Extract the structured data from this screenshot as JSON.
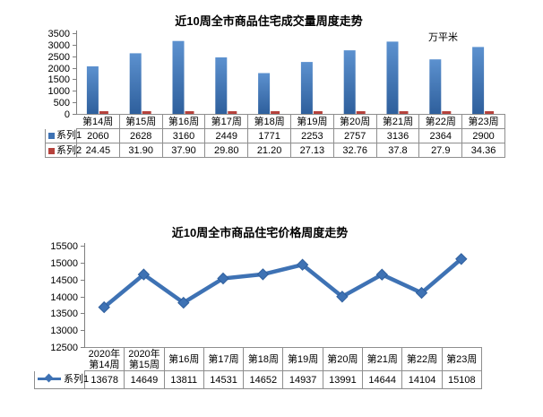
{
  "page": {
    "background": "#ffffff",
    "text_color": "#000000",
    "table_border_color": "#8e8e8e",
    "axis_color": "#7f7f7f"
  },
  "chart_data": [
    {
      "type": "bar",
      "title": "近10周全市商品住宅成交量周度走势",
      "unit_label": "万平米",
      "categories": [
        "第14周",
        "第15周",
        "第16周",
        "第17周",
        "第18周",
        "第19周",
        "第20周",
        "第21周",
        "第22周",
        "第23周"
      ],
      "series": [
        {
          "name": "系列1",
          "values": [
            "2060",
            "2628",
            "3160",
            "2449",
            "1771",
            "2253",
            "2757",
            "3136",
            "2364",
            "2900"
          ],
          "color": "#3e72b4",
          "color_light": "#5c91cf",
          "color_dark": "#2e5f9c"
        },
        {
          "name": "系列2",
          "values": [
            "24.45",
            "31.90",
            "37.90",
            "29.80",
            "21.20",
            "27.13",
            "32.76",
            "37.8",
            "27.9",
            "34.36"
          ],
          "color": "#b6423c"
        }
      ],
      "ylim": [
        0,
        3500
      ],
      "ytick": 500,
      "ytick_labels": [
        "3500",
        "3000",
        "2500",
        "2000",
        "1500",
        "1000",
        "500",
        "0"
      ],
      "grid": false,
      "legend_position": "data-table-left",
      "has_data_table": true
    },
    {
      "type": "line",
      "title": "近10周全市商品住宅价格周度走势",
      "categories": [
        "2020年\n第14周",
        "2020年\n第15周",
        "第16周",
        "第17周",
        "第18周",
        "第19周",
        "第20周",
        "第21周",
        "第22周",
        "第23周"
      ],
      "series": [
        {
          "name": "系列1",
          "values": [
            "13678",
            "14649",
            "13811",
            "14531",
            "14652",
            "14937",
            "13991",
            "14644",
            "14104",
            "15108"
          ],
          "color": "#3e72b4",
          "color_dark": "#2f5f9d"
        }
      ],
      "ylim": [
        12500,
        15500
      ],
      "ytick": 500,
      "ytick_labels": [
        "15500",
        "15000",
        "14500",
        "14000",
        "13500",
        "13000",
        "12500"
      ],
      "grid": false,
      "legend_position": "data-table-left",
      "has_data_table": true
    }
  ]
}
